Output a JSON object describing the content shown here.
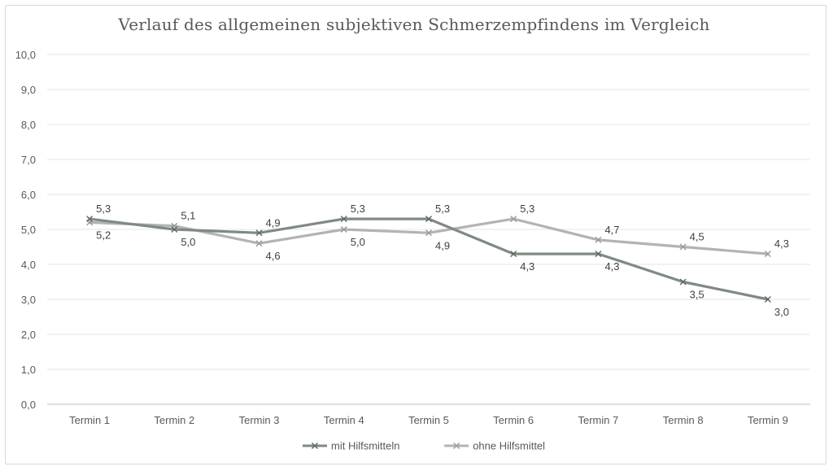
{
  "chart_data": {
    "type": "line",
    "title": "Verlauf des allgemeinen subjektiven Schmerzempfindens im Vergleich",
    "categories": [
      "Termin 1",
      "Termin 2",
      "Termin 3",
      "Termin 4",
      "Termin 5",
      "Termin 6",
      "Termin 7",
      "Termin 8",
      "Termin 9"
    ],
    "ylim": [
      0,
      10
    ],
    "y_ticks": [
      "0,0",
      "1,0",
      "2,0",
      "3,0",
      "4,0",
      "5,0",
      "6,0",
      "7,0",
      "8,0",
      "9,0",
      "10,0"
    ],
    "grid": true,
    "legend_position": "bottom",
    "series": [
      {
        "name": "mit Hilfsmitteln",
        "values": [
          5.3,
          5.0,
          4.9,
          5.3,
          5.3,
          4.3,
          4.3,
          3.5,
          3.0
        ],
        "labels": [
          "5,3",
          "5,0",
          "4,9",
          "5,3",
          "5,3",
          "4,3",
          "4,3",
          "3,5",
          "3,0"
        ],
        "color": "#7f8a80"
      },
      {
        "name": "ohne Hilfsmittel",
        "values": [
          5.2,
          5.1,
          4.6,
          5.0,
          4.9,
          5.3,
          4.7,
          4.5,
          4.3
        ],
        "labels": [
          "5,2",
          "5,1",
          "4,6",
          "5,0",
          "4,9",
          "5,3",
          "4,7",
          "4,5",
          "4,3"
        ],
        "color": "#b3b3b3"
      }
    ]
  }
}
